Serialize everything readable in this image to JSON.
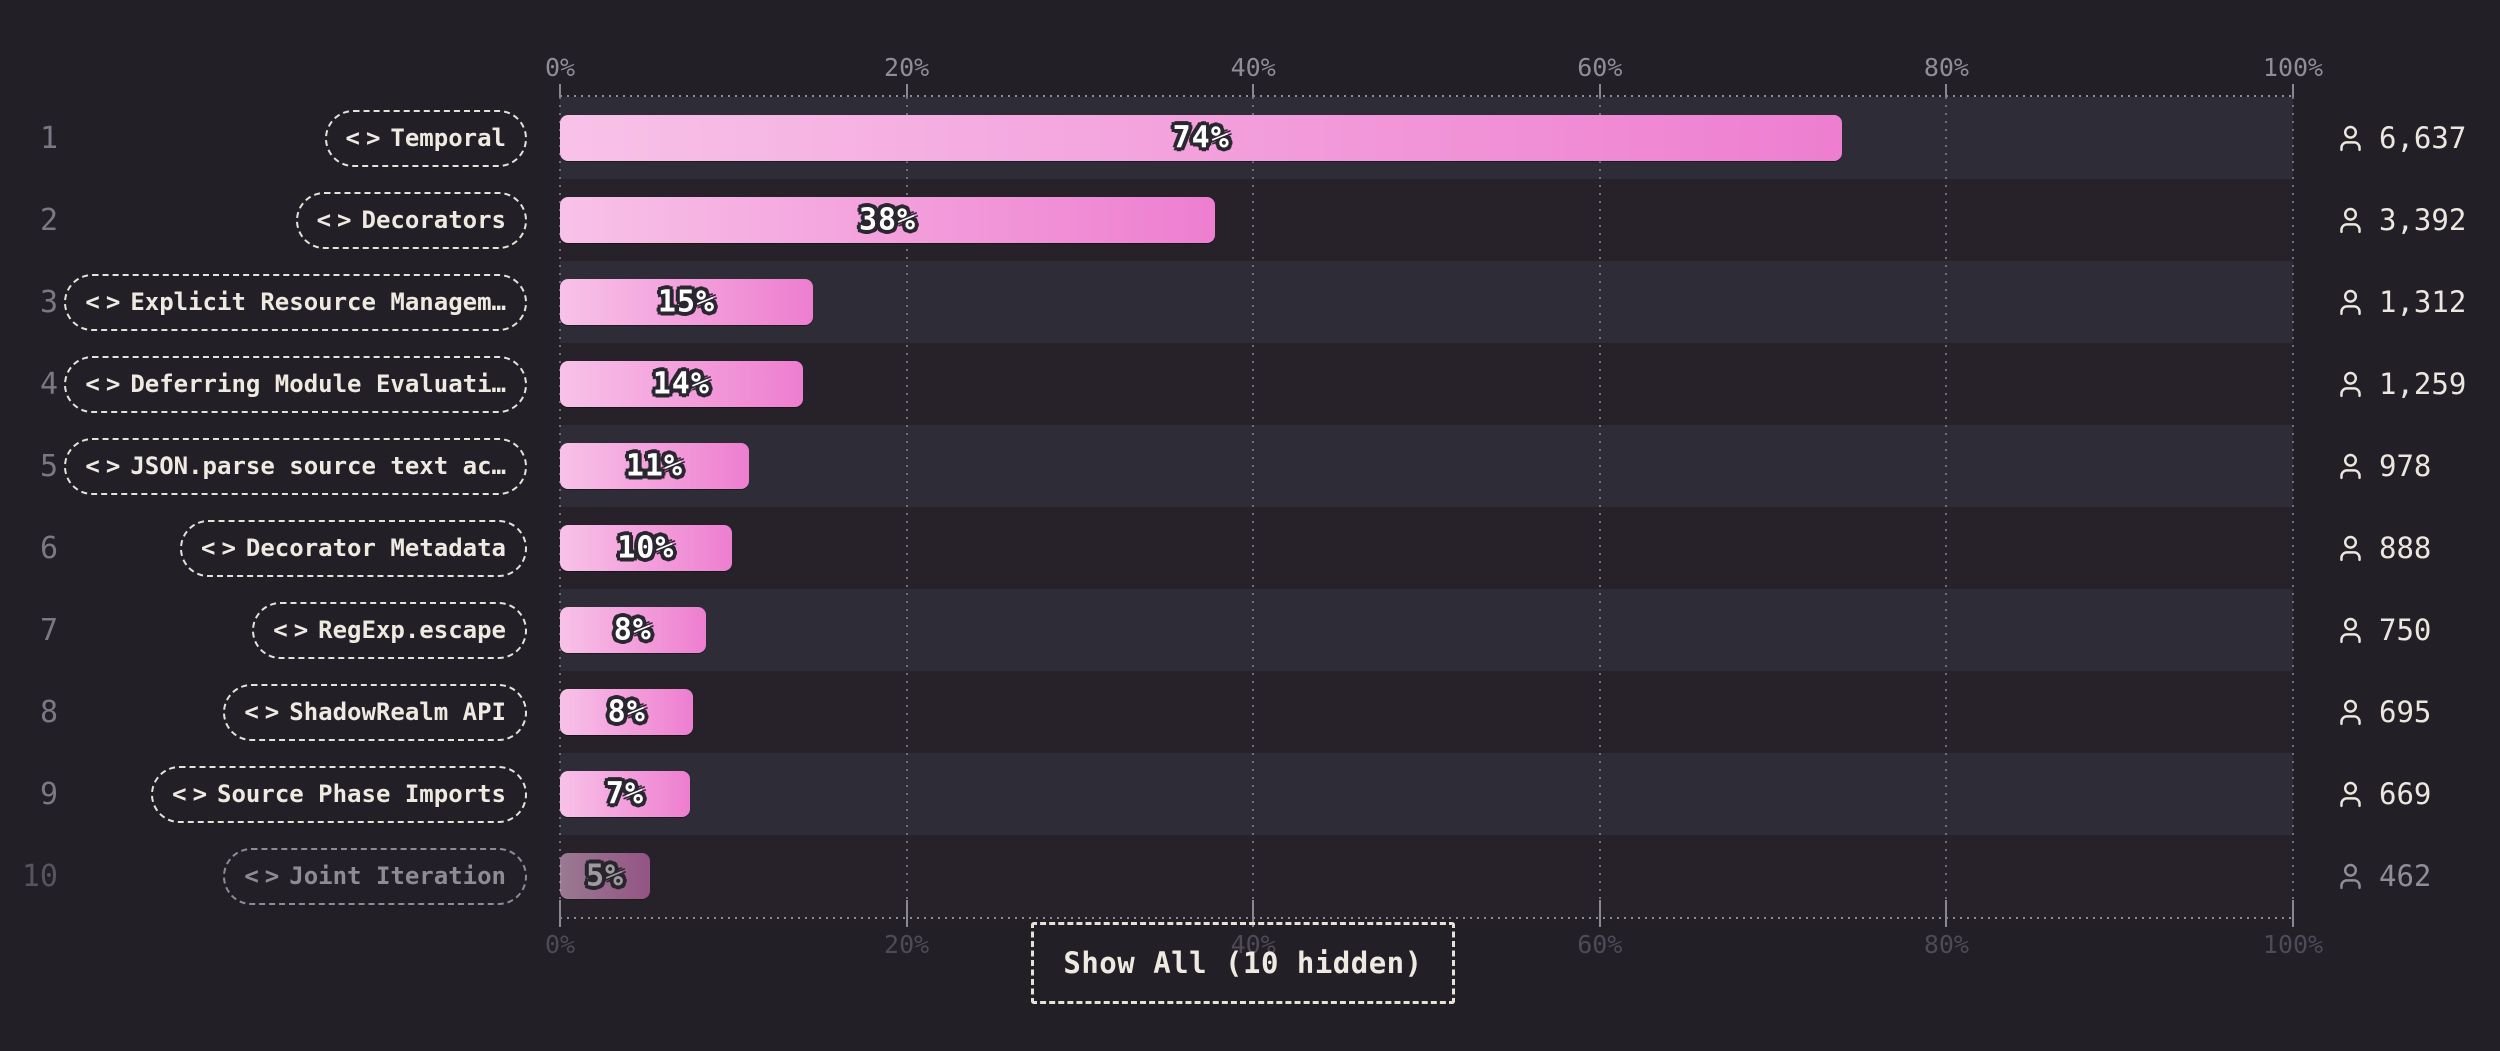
{
  "colors": {
    "page_background": "#221f27",
    "row_stripe_odd": "#2e2c36",
    "row_stripe_even": "#272229",
    "bar_gradient_start": "#f8c2e8",
    "bar_gradient_end": "#ee7ed0",
    "cream_text": "#efeae1",
    "axis_top_text": "#908d97",
    "axis_bottom_text": "#4e4a56",
    "badge_outline": "#2b2731"
  },
  "icons": {
    "code_open": "<",
    "code_close": ">",
    "user": "user-icon"
  },
  "footer": {
    "show_all_label": "Show All (10 hidden)"
  },
  "chart_data": {
    "type": "bar",
    "orientation": "horizontal",
    "unit": "%",
    "xlim": [
      0,
      100
    ],
    "grid": "dotted-vertical",
    "x_ticks": [
      "0%",
      "20%",
      "40%",
      "60%",
      "80%",
      "100%"
    ],
    "items": [
      {
        "rank": "1",
        "label": "Temporal",
        "percent_label": "74%",
        "bar_width_pct": 74.0,
        "count": "6,637",
        "dimmed": false
      },
      {
        "rank": "2",
        "label": "Decorators",
        "percent_label": "38%",
        "bar_width_pct": 37.8,
        "count": "3,392",
        "dimmed": false
      },
      {
        "rank": "3",
        "label": "Explicit Resource Managem…",
        "percent_label": "15%",
        "bar_width_pct": 14.6,
        "count": "1,312",
        "dimmed": false
      },
      {
        "rank": "4",
        "label": "Deferring Module Evaluati…",
        "percent_label": "14%",
        "bar_width_pct": 14.0,
        "count": "1,259",
        "dimmed": false
      },
      {
        "rank": "5",
        "label": "JSON.parse source text ac…",
        "percent_label": "11%",
        "bar_width_pct": 10.9,
        "count": "978",
        "dimmed": false
      },
      {
        "rank": "6",
        "label": "Decorator Metadata",
        "percent_label": "10%",
        "bar_width_pct": 9.9,
        "count": "888",
        "dimmed": false
      },
      {
        "rank": "7",
        "label": "RegExp.escape",
        "percent_label": "8%",
        "bar_width_pct": 8.4,
        "count": "750",
        "dimmed": false
      },
      {
        "rank": "8",
        "label": "ShadowRealm API",
        "percent_label": "8%",
        "bar_width_pct": 7.7,
        "count": "695",
        "dimmed": false
      },
      {
        "rank": "9",
        "label": "Source Phase Imports",
        "percent_label": "7%",
        "bar_width_pct": 7.5,
        "count": "669",
        "dimmed": false
      },
      {
        "rank": "10",
        "label": "Joint Iteration",
        "percent_label": "5%",
        "bar_width_pct": 5.2,
        "count": "462",
        "dimmed": true
      }
    ]
  }
}
